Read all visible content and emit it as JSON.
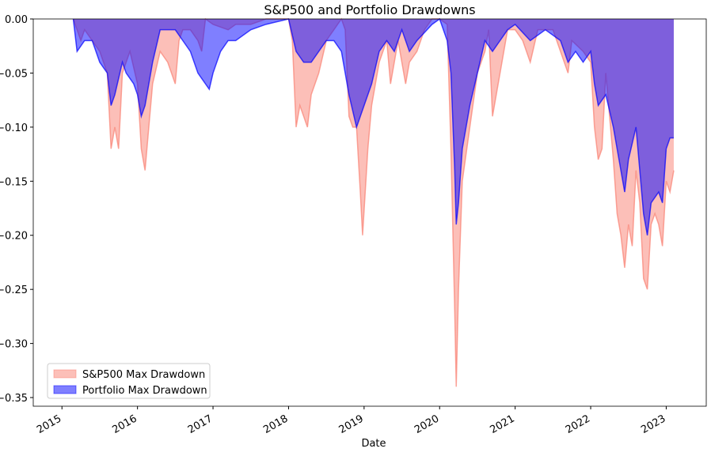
{
  "chart_data": {
    "type": "area",
    "title": "S&P500 and Portfolio Drawdowns",
    "xlabel": "Date",
    "xlim": [
      2014.62,
      2023.53
    ],
    "xticks": [
      2015,
      2016,
      2017,
      2018,
      2019,
      2020,
      2021,
      2022,
      2023
    ],
    "ylim": [
      -0.358,
      0
    ],
    "yticks": [
      {
        "value": 0,
        "label": "0.00"
      },
      {
        "value": -0.05,
        "label": "−0.05"
      },
      {
        "value": -0.1,
        "label": "−0.10"
      },
      {
        "value": -0.15,
        "label": "−0.15"
      },
      {
        "value": -0.2,
        "label": "−0.20"
      },
      {
        "value": -0.25,
        "label": "−0.25"
      },
      {
        "value": -0.3,
        "label": "−0.30"
      },
      {
        "value": -0.35,
        "label": "−0.35"
      }
    ],
    "legend": "lower left",
    "series": [
      {
        "name": "S&P500 Max Drawdown",
        "color": "#fa8072",
        "x": [
          2015.15,
          2015.2,
          2015.25,
          2015.3,
          2015.4,
          2015.5,
          2015.6,
          2015.65,
          2015.7,
          2015.75,
          2015.8,
          2015.9,
          2016.0,
          2016.05,
          2016.1,
          2016.15,
          2016.2,
          2016.3,
          2016.4,
          2016.5,
          2016.55,
          2016.6,
          2016.7,
          2016.8,
          2016.85,
          2016.9,
          2017.0,
          2017.2,
          2017.3,
          2017.5,
          2017.7,
          2018.0,
          2018.05,
          2018.1,
          2018.15,
          2018.2,
          2018.25,
          2018.3,
          2018.4,
          2018.5,
          2018.6,
          2018.7,
          2018.75,
          2018.8,
          2018.85,
          2018.9,
          2018.95,
          2018.98,
          2019.05,
          2019.1,
          2019.2,
          2019.3,
          2019.35,
          2019.45,
          2019.55,
          2019.6,
          2019.7,
          2019.8,
          2019.9,
          2020.0,
          2020.1,
          2020.15,
          2020.2,
          2020.22,
          2020.25,
          2020.3,
          2020.4,
          2020.5,
          2020.6,
          2020.65,
          2020.7,
          2020.8,
          2020.9,
          2021.0,
          2021.1,
          2021.2,
          2021.3,
          2021.5,
          2021.7,
          2021.75,
          2021.9,
          2022.0,
          2022.05,
          2022.1,
          2022.15,
          2022.2,
          2022.3,
          2022.35,
          2022.4,
          2022.45,
          2022.5,
          2022.55,
          2022.6,
          2022.65,
          2022.7,
          2022.75,
          2022.8,
          2022.85,
          2022.9,
          2022.95,
          2023.0,
          2023.05,
          2023.1
        ],
        "values": [
          0,
          -0.01,
          -0.02,
          -0.01,
          -0.02,
          -0.03,
          -0.05,
          -0.12,
          -0.1,
          -0.12,
          -0.05,
          -0.03,
          -0.06,
          -0.12,
          -0.14,
          -0.1,
          -0.06,
          -0.03,
          -0.04,
          -0.06,
          -0.02,
          -0.01,
          -0.01,
          -0.02,
          -0.03,
          0,
          -0.005,
          -0.01,
          -0.005,
          -0.005,
          0,
          0,
          -0.02,
          -0.1,
          -0.08,
          -0.09,
          -0.1,
          -0.07,
          -0.05,
          -0.02,
          -0.01,
          0,
          -0.01,
          -0.09,
          -0.1,
          -0.1,
          -0.16,
          -0.2,
          -0.12,
          -0.08,
          -0.04,
          -0.02,
          -0.06,
          -0.02,
          -0.06,
          -0.04,
          -0.03,
          -0.01,
          0,
          0,
          -0.005,
          -0.12,
          -0.27,
          -0.34,
          -0.25,
          -0.15,
          -0.1,
          -0.05,
          -0.03,
          -0.01,
          -0.09,
          -0.05,
          -0.01,
          -0.01,
          -0.02,
          -0.04,
          -0.01,
          -0.01,
          -0.05,
          -0.02,
          -0.03,
          -0.04,
          -0.1,
          -0.13,
          -0.12,
          -0.05,
          -0.13,
          -0.18,
          -0.2,
          -0.23,
          -0.19,
          -0.21,
          -0.14,
          -0.17,
          -0.24,
          -0.25,
          -0.19,
          -0.18,
          -0.19,
          -0.21,
          -0.15,
          -0.16,
          -0.14
        ]
      },
      {
        "name": "Portfolio Max Drawdown",
        "color": "#0000ff",
        "x": [
          2015.15,
          2015.2,
          2015.3,
          2015.4,
          2015.5,
          2015.6,
          2015.65,
          2015.7,
          2015.8,
          2015.85,
          2015.95,
          2016.0,
          2016.05,
          2016.1,
          2016.2,
          2016.3,
          2016.5,
          2016.6,
          2016.7,
          2016.8,
          2016.9,
          2016.95,
          2017.0,
          2017.1,
          2017.2,
          2017.3,
          2017.5,
          2017.7,
          2018.0,
          2018.1,
          2018.2,
          2018.3,
          2018.4,
          2018.5,
          2018.6,
          2018.7,
          2018.8,
          2018.9,
          2019.0,
          2019.1,
          2019.2,
          2019.3,
          2019.4,
          2019.5,
          2019.6,
          2019.7,
          2019.9,
          2020.0,
          2020.1,
          2020.15,
          2020.2,
          2020.22,
          2020.25,
          2020.3,
          2020.4,
          2020.5,
          2020.6,
          2020.7,
          2020.8,
          2020.9,
          2021.0,
          2021.2,
          2021.4,
          2021.6,
          2021.7,
          2021.8,
          2021.9,
          2022.0,
          2022.05,
          2022.1,
          2022.2,
          2022.3,
          2022.4,
          2022.45,
          2022.5,
          2022.6,
          2022.65,
          2022.7,
          2022.75,
          2022.8,
          2022.9,
          2022.95,
          2023.0,
          2023.05,
          2023.1
        ],
        "values": [
          0,
          -0.03,
          -0.02,
          -0.02,
          -0.04,
          -0.05,
          -0.08,
          -0.07,
          -0.04,
          -0.05,
          -0.06,
          -0.07,
          -0.09,
          -0.08,
          -0.04,
          -0.01,
          -0.01,
          -0.02,
          -0.03,
          -0.05,
          -0.06,
          -0.065,
          -0.05,
          -0.03,
          -0.02,
          -0.02,
          -0.01,
          -0.005,
          0,
          -0.03,
          -0.04,
          -0.04,
          -0.03,
          -0.02,
          -0.02,
          -0.03,
          -0.07,
          -0.1,
          -0.08,
          -0.06,
          -0.03,
          -0.02,
          -0.03,
          -0.01,
          -0.03,
          -0.02,
          -0.005,
          0,
          -0.02,
          -0.05,
          -0.14,
          -0.19,
          -0.17,
          -0.12,
          -0.08,
          -0.05,
          -0.02,
          -0.03,
          -0.02,
          -0.01,
          -0.005,
          -0.02,
          -0.01,
          -0.02,
          -0.04,
          -0.03,
          -0.04,
          -0.03,
          -0.06,
          -0.08,
          -0.07,
          -0.1,
          -0.14,
          -0.16,
          -0.13,
          -0.1,
          -0.14,
          -0.18,
          -0.2,
          -0.17,
          -0.16,
          -0.17,
          -0.12,
          -0.11,
          -0.11
        ]
      }
    ]
  }
}
